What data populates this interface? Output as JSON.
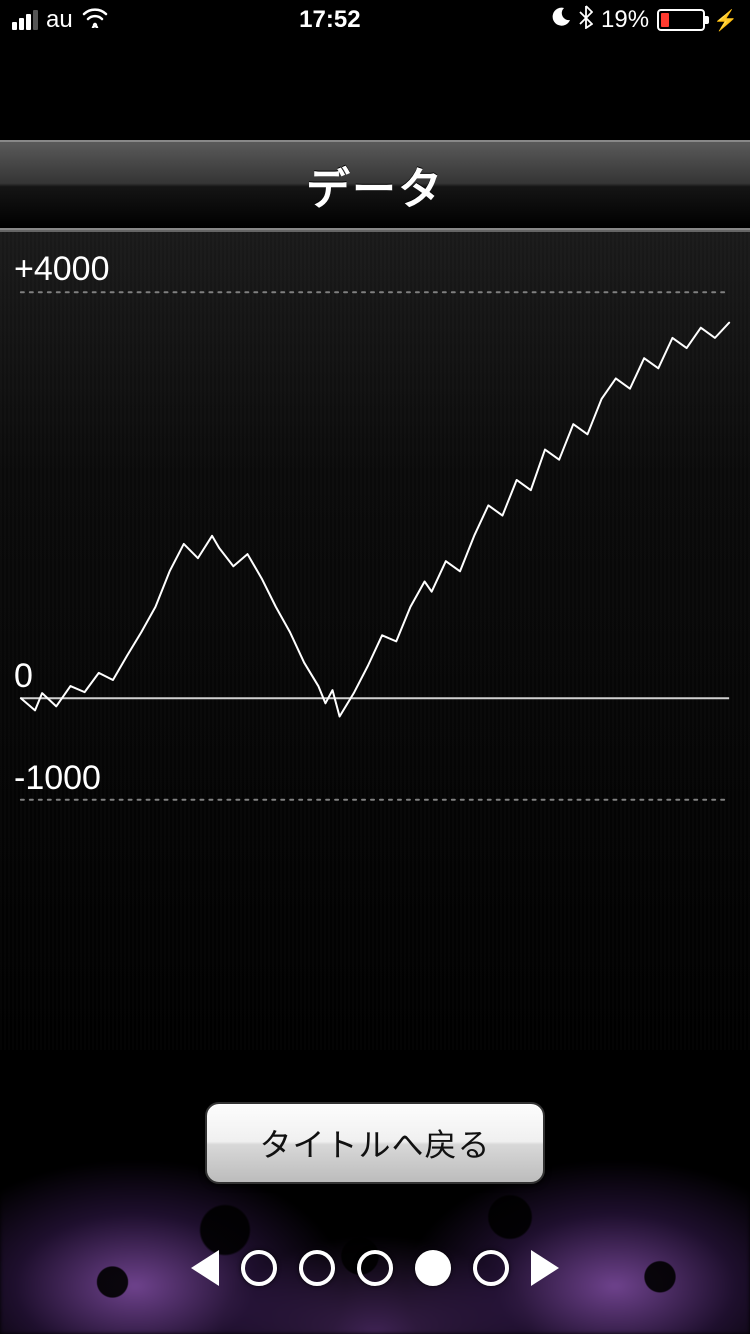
{
  "status_bar": {
    "carrier": "au",
    "time": "17:52",
    "battery_percent_label": "19%",
    "battery_percent_value": 19,
    "battery_fill_color": "#ff3b30",
    "signal_bars": 4,
    "signal_strength": 3
  },
  "header": {
    "title": "データ"
  },
  "chart": {
    "type": "line",
    "line_color": "#ffffff",
    "line_width": 2,
    "background": "#0a0a0a",
    "axis_color": "#d0d0d0",
    "grid_dot_color": "#808080",
    "zero_line_width": 2,
    "y_labels": [
      {
        "value": 4000,
        "text": "+4000"
      },
      {
        "value": 0,
        "text": "0"
      },
      {
        "value": -1000,
        "text": "-1000"
      }
    ],
    "y_min": -1500,
    "y_max": 4200,
    "label_fontsize": 34,
    "label_color": "#ffffff",
    "x_range": [
      0,
      100
    ],
    "series": [
      [
        0,
        0
      ],
      [
        2,
        -120
      ],
      [
        3,
        50
      ],
      [
        5,
        -80
      ],
      [
        7,
        120
      ],
      [
        9,
        60
      ],
      [
        11,
        250
      ],
      [
        13,
        180
      ],
      [
        15,
        420
      ],
      [
        17,
        650
      ],
      [
        19,
        900
      ],
      [
        21,
        1250
      ],
      [
        23,
        1520
      ],
      [
        25,
        1380
      ],
      [
        27,
        1600
      ],
      [
        28,
        1480
      ],
      [
        30,
        1300
      ],
      [
        32,
        1420
      ],
      [
        34,
        1180
      ],
      [
        36,
        900
      ],
      [
        38,
        650
      ],
      [
        40,
        350
      ],
      [
        42,
        120
      ],
      [
        43,
        -50
      ],
      [
        44,
        80
      ],
      [
        45,
        -180
      ],
      [
        47,
        50
      ],
      [
        49,
        320
      ],
      [
        51,
        620
      ],
      [
        53,
        560
      ],
      [
        55,
        900
      ],
      [
        57,
        1150
      ],
      [
        58,
        1050
      ],
      [
        60,
        1350
      ],
      [
        62,
        1250
      ],
      [
        64,
        1600
      ],
      [
        66,
        1900
      ],
      [
        68,
        1800
      ],
      [
        70,
        2150
      ],
      [
        72,
        2050
      ],
      [
        74,
        2450
      ],
      [
        76,
        2350
      ],
      [
        78,
        2700
      ],
      [
        80,
        2600
      ],
      [
        82,
        2950
      ],
      [
        84,
        3150
      ],
      [
        86,
        3050
      ],
      [
        88,
        3350
      ],
      [
        90,
        3250
      ],
      [
        92,
        3550
      ],
      [
        94,
        3450
      ],
      [
        96,
        3650
      ],
      [
        98,
        3550
      ],
      [
        100,
        3700
      ]
    ]
  },
  "button": {
    "return_label": "タイトルへ戻る"
  },
  "pager": {
    "count": 5,
    "active_index": 3
  },
  "accent_glow_color": "#b060e0"
}
